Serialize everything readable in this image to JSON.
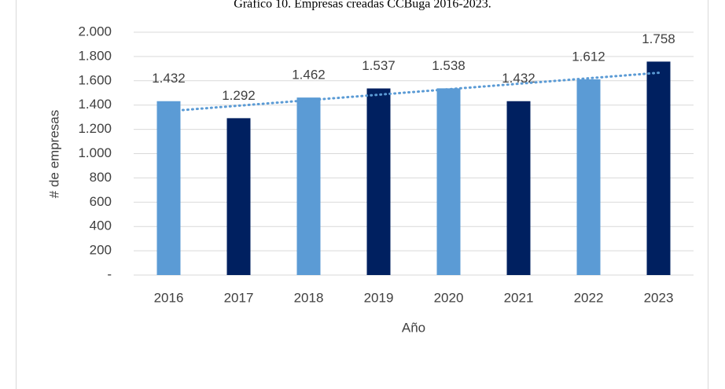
{
  "chart_data": {
    "type": "bar",
    "title": "Gráfico 10. Empresas creadas CCBuga 2016-2023.",
    "x_label": "Año",
    "y_label": "# de empresas",
    "categories": [
      "2016",
      "2017",
      "2018",
      "2019",
      "2020",
      "2021",
      "2022",
      "2023"
    ],
    "values": [
      1432,
      1292,
      1462,
      1537,
      1538,
      1432,
      1612,
      1758
    ],
    "value_labels": [
      "1.432",
      "1.292",
      "1.462",
      "1.537",
      "1.538",
      "1.432",
      "1.612",
      "1.758"
    ],
    "colors": [
      "#5b9bd5",
      "#002060",
      "#5b9bd5",
      "#002060",
      "#5b9bd5",
      "#002060",
      "#5b9bd5",
      "#002060"
    ],
    "ylim": [
      0,
      2000
    ],
    "yticks": [
      {
        "value": 0,
        "label": "-"
      },
      200,
      400,
      600,
      800,
      {
        "value": 1000,
        "label": "1.000"
      },
      {
        "value": 1200,
        "label": "1.200"
      },
      {
        "value": 1400,
        "label": "1.400"
      },
      {
        "value": 1600,
        "label": "1.600"
      },
      {
        "value": 1800,
        "label": "1.800"
      },
      {
        "value": 2000,
        "label": "2.000"
      }
    ],
    "grid": true,
    "trendline": "linear",
    "trendline_color": "#5b9bd5"
  }
}
